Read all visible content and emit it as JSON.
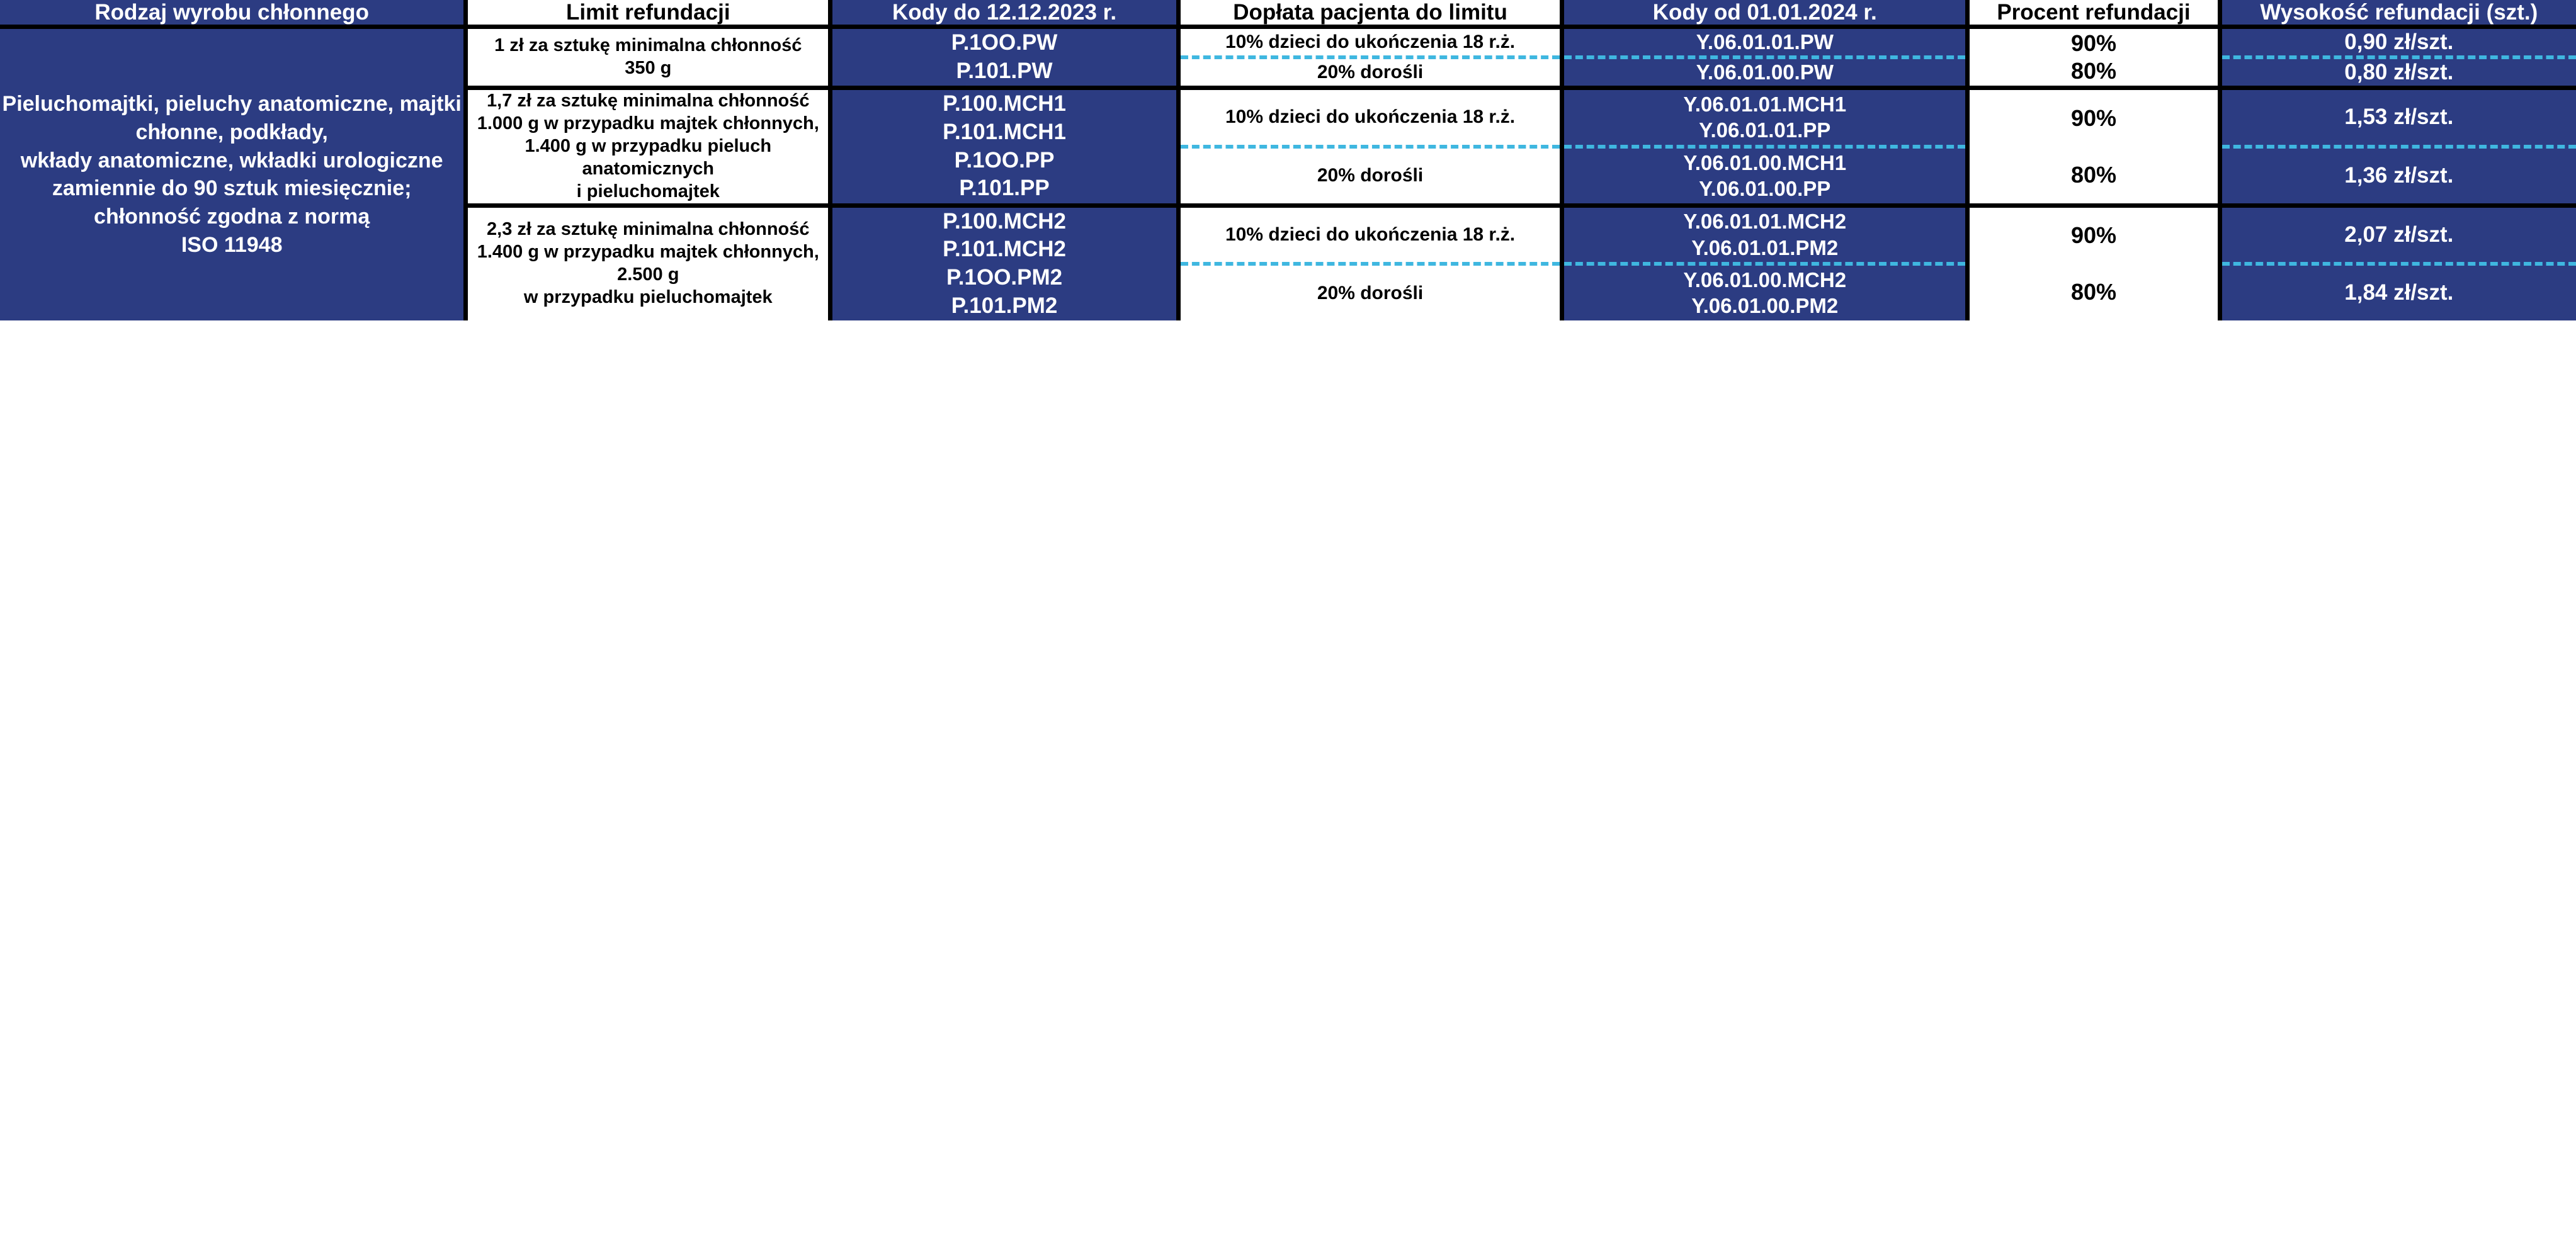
{
  "colors": {
    "blue_bg": "#2c3c82",
    "white_bg": "#ffffff",
    "dash": "#3fb7e0",
    "black": "#000000"
  },
  "headers": {
    "rodzaj": "Rodzaj wyrobu chłonnego",
    "limit": "Limit refundacji",
    "kodydo": "Kody do 12.12.2023 r.",
    "doplata": "Dopłata pacjenta do limitu",
    "kodyod": "Kody od 01.01.2024 r.",
    "procent": "Procent refundacji",
    "wysokosc": "Wysokość refundacji (szt.)"
  },
  "body": {
    "rodzaj": "Pieluchomajtki, pieluchy anatomiczne, majtki chłonne, podkłady,\nwkłady anatomiczne, wkładki urologiczne zamiennie do 90 sztuk miesięcznie; chłonność zgodna z normą\nISO 11948"
  },
  "tiers": [
    {
      "limit": "1 zł za sztukę minimalna chłonność\n350 g",
      "kodydo": "P.1OO.PW\nP.101.PW",
      "rows": [
        {
          "doplata": "10% dzieci do ukończenia 18 r.ż.",
          "kodyod": "Y.06.01.01.PW",
          "procent": "90%",
          "wys": "0,90 zł/szt."
        },
        {
          "doplata": "20% dorośli",
          "kodyod": "Y.06.01.00.PW",
          "procent": "80%",
          "wys": "0,80 zł/szt."
        }
      ]
    },
    {
      "limit": "1,7 zł za sztukę minimalna chłonność 1.000 g w przypadku majtek chłonnych, 1.400 g w przypadku pieluch anatomicznych\ni pieluchomajtek",
      "kodydo": "P.100.MCH1\nP.101.MCH1\nP.1OO.PP\nP.101.PP",
      "rows": [
        {
          "doplata": "10% dzieci do ukończenia 18 r.ż.",
          "kodyod": "Y.06.01.01.MCH1\nY.06.01.01.PP",
          "procent": "90%",
          "wys": "1,53 zł/szt."
        },
        {
          "doplata": "20% dorośli",
          "kodyod": "Y.06.01.00.MCH1\nY.06.01.00.PP",
          "procent": "80%",
          "wys": "1,36 zł/szt."
        }
      ]
    },
    {
      "limit": "2,3 zł za sztukę minimalna chłonność 1.400 g w przypadku majtek chłonnych, 2.500 g\nw przypadku pieluchomajtek",
      "kodydo": "P.100.MCH2\nP.101.MCH2\nP.1OO.PM2\nP.101.PM2",
      "rows": [
        {
          "doplata": "10% dzieci do ukończenia 18 r.ż.",
          "kodyod": "Y.06.01.01.MCH2\nY.06.01.01.PM2",
          "procent": "90%",
          "wys": "2,07 zł/szt."
        },
        {
          "doplata": "20% dorośli",
          "kodyod": "Y.06.01.00.MCH2\nY.06.01.00.PM2",
          "procent": "80%",
          "wys": "1,84 zł/szt."
        }
      ]
    }
  ]
}
